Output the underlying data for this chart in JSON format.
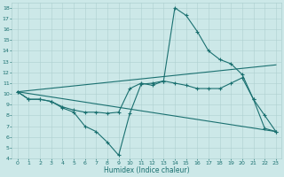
{
  "xlabel": "Humidex (Indice chaleur)",
  "bg_color": "#cce8e8",
  "line_color": "#1a7070",
  "grid_color": "#aed0d0",
  "xlim": [
    -0.5,
    23.5
  ],
  "ylim": [
    4,
    18.5
  ],
  "xticks": [
    0,
    1,
    2,
    3,
    4,
    5,
    6,
    7,
    8,
    9,
    10,
    11,
    12,
    13,
    14,
    15,
    16,
    17,
    18,
    19,
    20,
    21,
    22,
    23
  ],
  "yticks": [
    4,
    5,
    6,
    7,
    8,
    9,
    10,
    11,
    12,
    13,
    14,
    15,
    16,
    17,
    18
  ],
  "series": [
    {
      "x": [
        0,
        1,
        2,
        3,
        4,
        5,
        6,
        7,
        8,
        9,
        10,
        11,
        12,
        13,
        14,
        15,
        16,
        17,
        18,
        19,
        20,
        21,
        22,
        23
      ],
      "y": [
        10.2,
        9.5,
        9.5,
        9.3,
        8.7,
        8.3,
        7.0,
        6.5,
        5.5,
        4.3,
        8.2,
        10.9,
        11.0,
        11.2,
        18.0,
        17.3,
        15.8,
        14.0,
        13.2,
        12.8,
        11.8,
        9.5,
        8.0,
        6.5
      ],
      "marker": true
    },
    {
      "x": [
        0,
        1,
        2,
        3,
        4,
        5,
        6,
        7,
        8,
        9,
        10,
        11,
        12,
        13,
        14,
        15,
        16,
        17,
        18,
        19,
        20,
        21,
        22,
        23
      ],
      "y": [
        10.2,
        9.5,
        9.5,
        9.3,
        8.8,
        8.5,
        8.3,
        8.3,
        8.2,
        8.3,
        10.5,
        11.0,
        10.8,
        11.2,
        11.0,
        10.8,
        10.5,
        10.5,
        10.5,
        11.0,
        11.5,
        9.5,
        6.8,
        6.5
      ],
      "marker": true
    },
    {
      "x": [
        0,
        23
      ],
      "y": [
        10.2,
        6.5
      ],
      "marker": false
    },
    {
      "x": [
        0,
        23
      ],
      "y": [
        10.2,
        12.7
      ],
      "marker": false
    }
  ]
}
